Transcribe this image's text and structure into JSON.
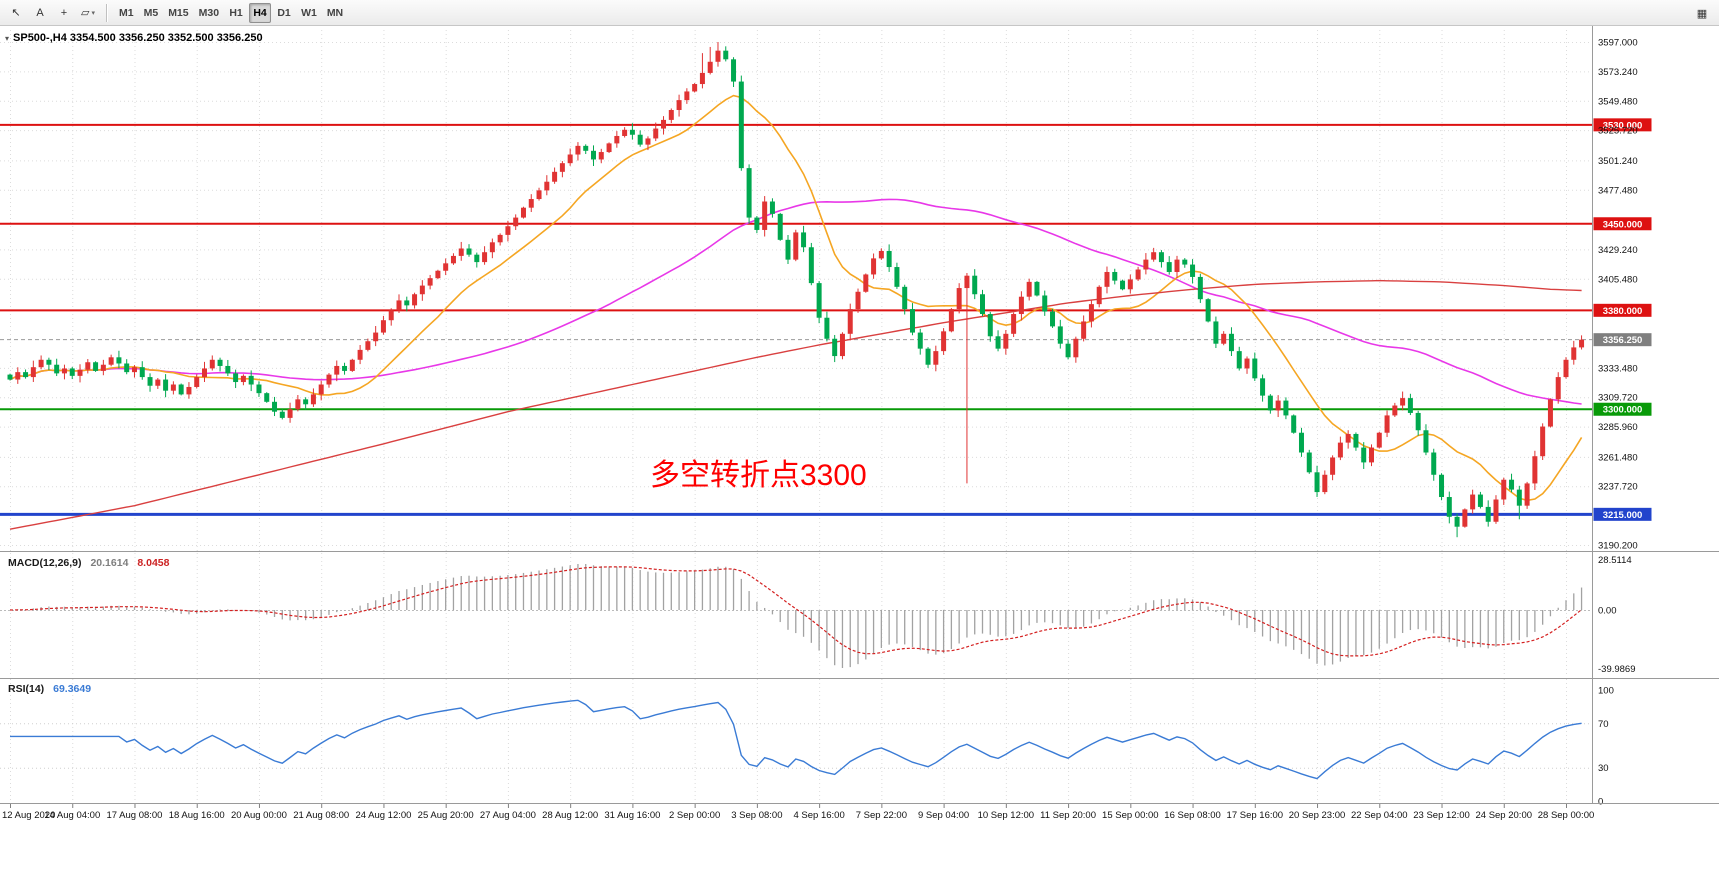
{
  "toolbar": {
    "tools": [
      {
        "name": "cursor",
        "glyph": "↖"
      },
      {
        "name": "text-label",
        "glyph": "A"
      },
      {
        "name": "crosshair",
        "glyph": "+"
      },
      {
        "name": "draw-tools",
        "glyph": "▱",
        "dropdown": true
      }
    ],
    "timeframes": [
      "M1",
      "M5",
      "M15",
      "M30",
      "H1",
      "H4",
      "D1",
      "W1",
      "MN"
    ],
    "active_timeframe": "H4",
    "right_icon": {
      "name": "chart-grid",
      "glyph": "▦"
    }
  },
  "chart": {
    "symbol_line": "SP500-,H4 3354.500 3356.250 3352.500 3356.250",
    "annotation": {
      "text": "多空转折点3300",
      "color": "#fe0000"
    }
  },
  "y_axis": {
    "ticks": [
      {
        "label": "3597.000",
        "price": 3597.0
      },
      {
        "label": "3573.240",
        "price": 3573.24
      },
      {
        "label": "3549.480",
        "price": 3549.48
      },
      {
        "label": "3525.720",
        "price": 3525.72
      },
      {
        "label": "3501.240",
        "price": 3501.24
      },
      {
        "label": "3477.480",
        "price": 3477.48
      },
      {
        "label": "3429.240",
        "price": 3429.24
      },
      {
        "label": "3405.480",
        "price": 3405.48
      },
      {
        "label": "3333.480",
        "price": 3333.48
      },
      {
        "label": "3309.720",
        "price": 3309.72
      },
      {
        "label": "3285.960",
        "price": 3285.96
      },
      {
        "label": "3261.480",
        "price": 3261.48
      },
      {
        "label": "3237.720",
        "price": 3237.72
      },
      {
        "label": "3190.200",
        "price": 3190.2
      }
    ]
  },
  "levels": [
    {
      "label": "3530.000",
      "price": 3530.0,
      "color": "#dd1111",
      "width": 2
    },
    {
      "label": "3450.000",
      "price": 3450.0,
      "color": "#dd1111",
      "width": 2
    },
    {
      "label": "3380.000",
      "price": 3380.0,
      "color": "#dd1111",
      "width": 2
    },
    {
      "label": "3300.000",
      "price": 3300.0,
      "color": "#089a08",
      "width": 2
    },
    {
      "label": "3215.000",
      "price": 3215.0,
      "color": "#2244cc",
      "width": 3
    }
  ],
  "current_price": {
    "label": "3356.250",
    "price": 3356.25,
    "color": "#7f7f7f"
  },
  "x_axis": {
    "bars_per_label": 8,
    "labels": [
      "12 Aug 2020",
      "14 Aug 04:00",
      "17 Aug 08:00",
      "18 Aug 16:00",
      "20 Aug 00:00",
      "21 Aug 08:00",
      "24 Aug 12:00",
      "25 Aug 20:00",
      "27 Aug 04:00",
      "28 Aug 12:00",
      "31 Aug 16:00",
      "2 Sep 00:00",
      "3 Sep 08:00",
      "4 Sep 16:00",
      "7 Sep 22:00",
      "9 Sep 04:00",
      "10 Sep 12:00",
      "11 Sep 20:00",
      "15 Sep 00:00",
      "16 Sep 08:00",
      "17 Sep 16:00",
      "20 Sep 23:00",
      "22 Sep 04:00",
      "23 Sep 12:00",
      "24 Sep 20:00",
      "28 Sep 00:00"
    ]
  },
  "macd_panel": {
    "label": "MACD(12,26,9)",
    "value_main": "20.1614",
    "value_signal": "8.0458",
    "axis": [
      "28.5114",
      "0.00",
      "-39.9869"
    ],
    "params": {
      "fast": 12,
      "slow": 26,
      "signal": 9
    },
    "histogram_color": "#a2a2a2",
    "signal_color": "#d42020"
  },
  "rsi_panel": {
    "label": "RSI(14)",
    "value": "69.3649",
    "period": 14,
    "axis": [
      {
        "label": "100",
        "value": 100
      },
      {
        "label": "70",
        "value": 70
      },
      {
        "label": "30",
        "value": 30
      },
      {
        "label": "0",
        "value": 0
      }
    ],
    "guide_levels": [
      70,
      30
    ],
    "line_color": "#3a7bd5"
  },
  "chart_data": {
    "type": "candlestick",
    "symbol": "SP500-",
    "period": "H4",
    "price_range_visible": [
      3187.0,
      3605.0
    ],
    "up_color": "#e03333",
    "down_color": "#00a84f",
    "note": "open[i]=close[i-1]; red=bullish, green=bearish",
    "closes": [
      3324,
      3330,
      3326,
      3334,
      3340,
      3336,
      3329,
      3333,
      3327,
      3332,
      3338,
      3331,
      3336,
      3342,
      3337,
      3330,
      3334,
      3326,
      3319,
      3324,
      3315,
      3320,
      3312,
      3318,
      3326,
      3333,
      3340,
      3335,
      3329,
      3322,
      3327,
      3320,
      3313,
      3306,
      3298,
      3293,
      3300,
      3308,
      3304,
      3312,
      3320,
      3328,
      3335,
      3331,
      3340,
      3348,
      3355,
      3362,
      3372,
      3380,
      3388,
      3384,
      3393,
      3400,
      3406,
      3412,
      3418,
      3424,
      3430,
      3425,
      3419,
      3427,
      3435,
      3441,
      3448,
      3455,
      3463,
      3470,
      3477,
      3484,
      3492,
      3499,
      3506,
      3513,
      3509,
      3502,
      3508,
      3515,
      3521,
      3526,
      3522,
      3514,
      3519,
      3527,
      3534,
      3542,
      3550,
      3557,
      3563,
      3572,
      3581,
      3590,
      3583,
      3565,
      3495,
      3455,
      3445,
      3468,
      3458,
      3437,
      3421,
      3443,
      3431,
      3402,
      3374,
      3357,
      3343,
      3361,
      3381,
      3395,
      3409,
      3422,
      3428,
      3415,
      3399,
      3381,
      3362,
      3349,
      3336,
      3347,
      3363,
      3381,
      3398,
      3408,
      3393,
      3377,
      3359,
      3349,
      3361,
      3377,
      3391,
      3403,
      3392,
      3379,
      3367,
      3353,
      3342,
      3357,
      3371,
      3385,
      3399,
      3411,
      3404,
      3397,
      3405,
      3413,
      3421,
      3427,
      3419,
      3411,
      3421,
      3417,
      3407,
      3389,
      3371,
      3353,
      3361,
      3347,
      3333,
      3341,
      3325,
      3311,
      3299,
      3307,
      3295,
      3281,
      3265,
      3249,
      3233,
      3247,
      3261,
      3273,
      3280,
      3269,
      3257,
      3269,
      3281,
      3295,
      3303,
      3309,
      3297,
      3283,
      3265,
      3247,
      3229,
      3213,
      3205,
      3219,
      3231,
      3221,
      3209,
      3227,
      3243,
      3235,
      3222,
      3240,
      3262,
      3286,
      3308,
      3326,
      3340,
      3350,
      3356.25
    ],
    "moving_averages": [
      {
        "name": "ma-fast",
        "color": "#f5a623",
        "period": 13
      },
      {
        "name": "ma-medium",
        "color": "#e838e8",
        "period": 60
      },
      {
        "name": "ma-slow",
        "color": "#d94040",
        "points": [
          [
            0,
            3203
          ],
          [
            16,
            3222
          ],
          [
            32,
            3247
          ],
          [
            48,
            3272
          ],
          [
            64,
            3298
          ],
          [
            80,
            3320
          ],
          [
            88,
            3331
          ],
          [
            96,
            3342
          ],
          [
            104,
            3352
          ],
          [
            112,
            3361
          ],
          [
            120,
            3370
          ],
          [
            128,
            3378
          ],
          [
            136,
            3386
          ],
          [
            144,
            3392
          ],
          [
            152,
            3397
          ],
          [
            160,
            3401
          ],
          [
            168,
            3403
          ],
          [
            176,
            3404
          ],
          [
            184,
            3403
          ],
          [
            192,
            3400
          ],
          [
            198,
            3397
          ],
          [
            202,
            3396
          ]
        ]
      }
    ],
    "wick_low_overrides": {
      "123": 3240,
      "186": 3196.5,
      "194": 3211
    },
    "wick_high_overrides": {
      "89": 3588,
      "90": 3593,
      "91": 3597
    }
  }
}
